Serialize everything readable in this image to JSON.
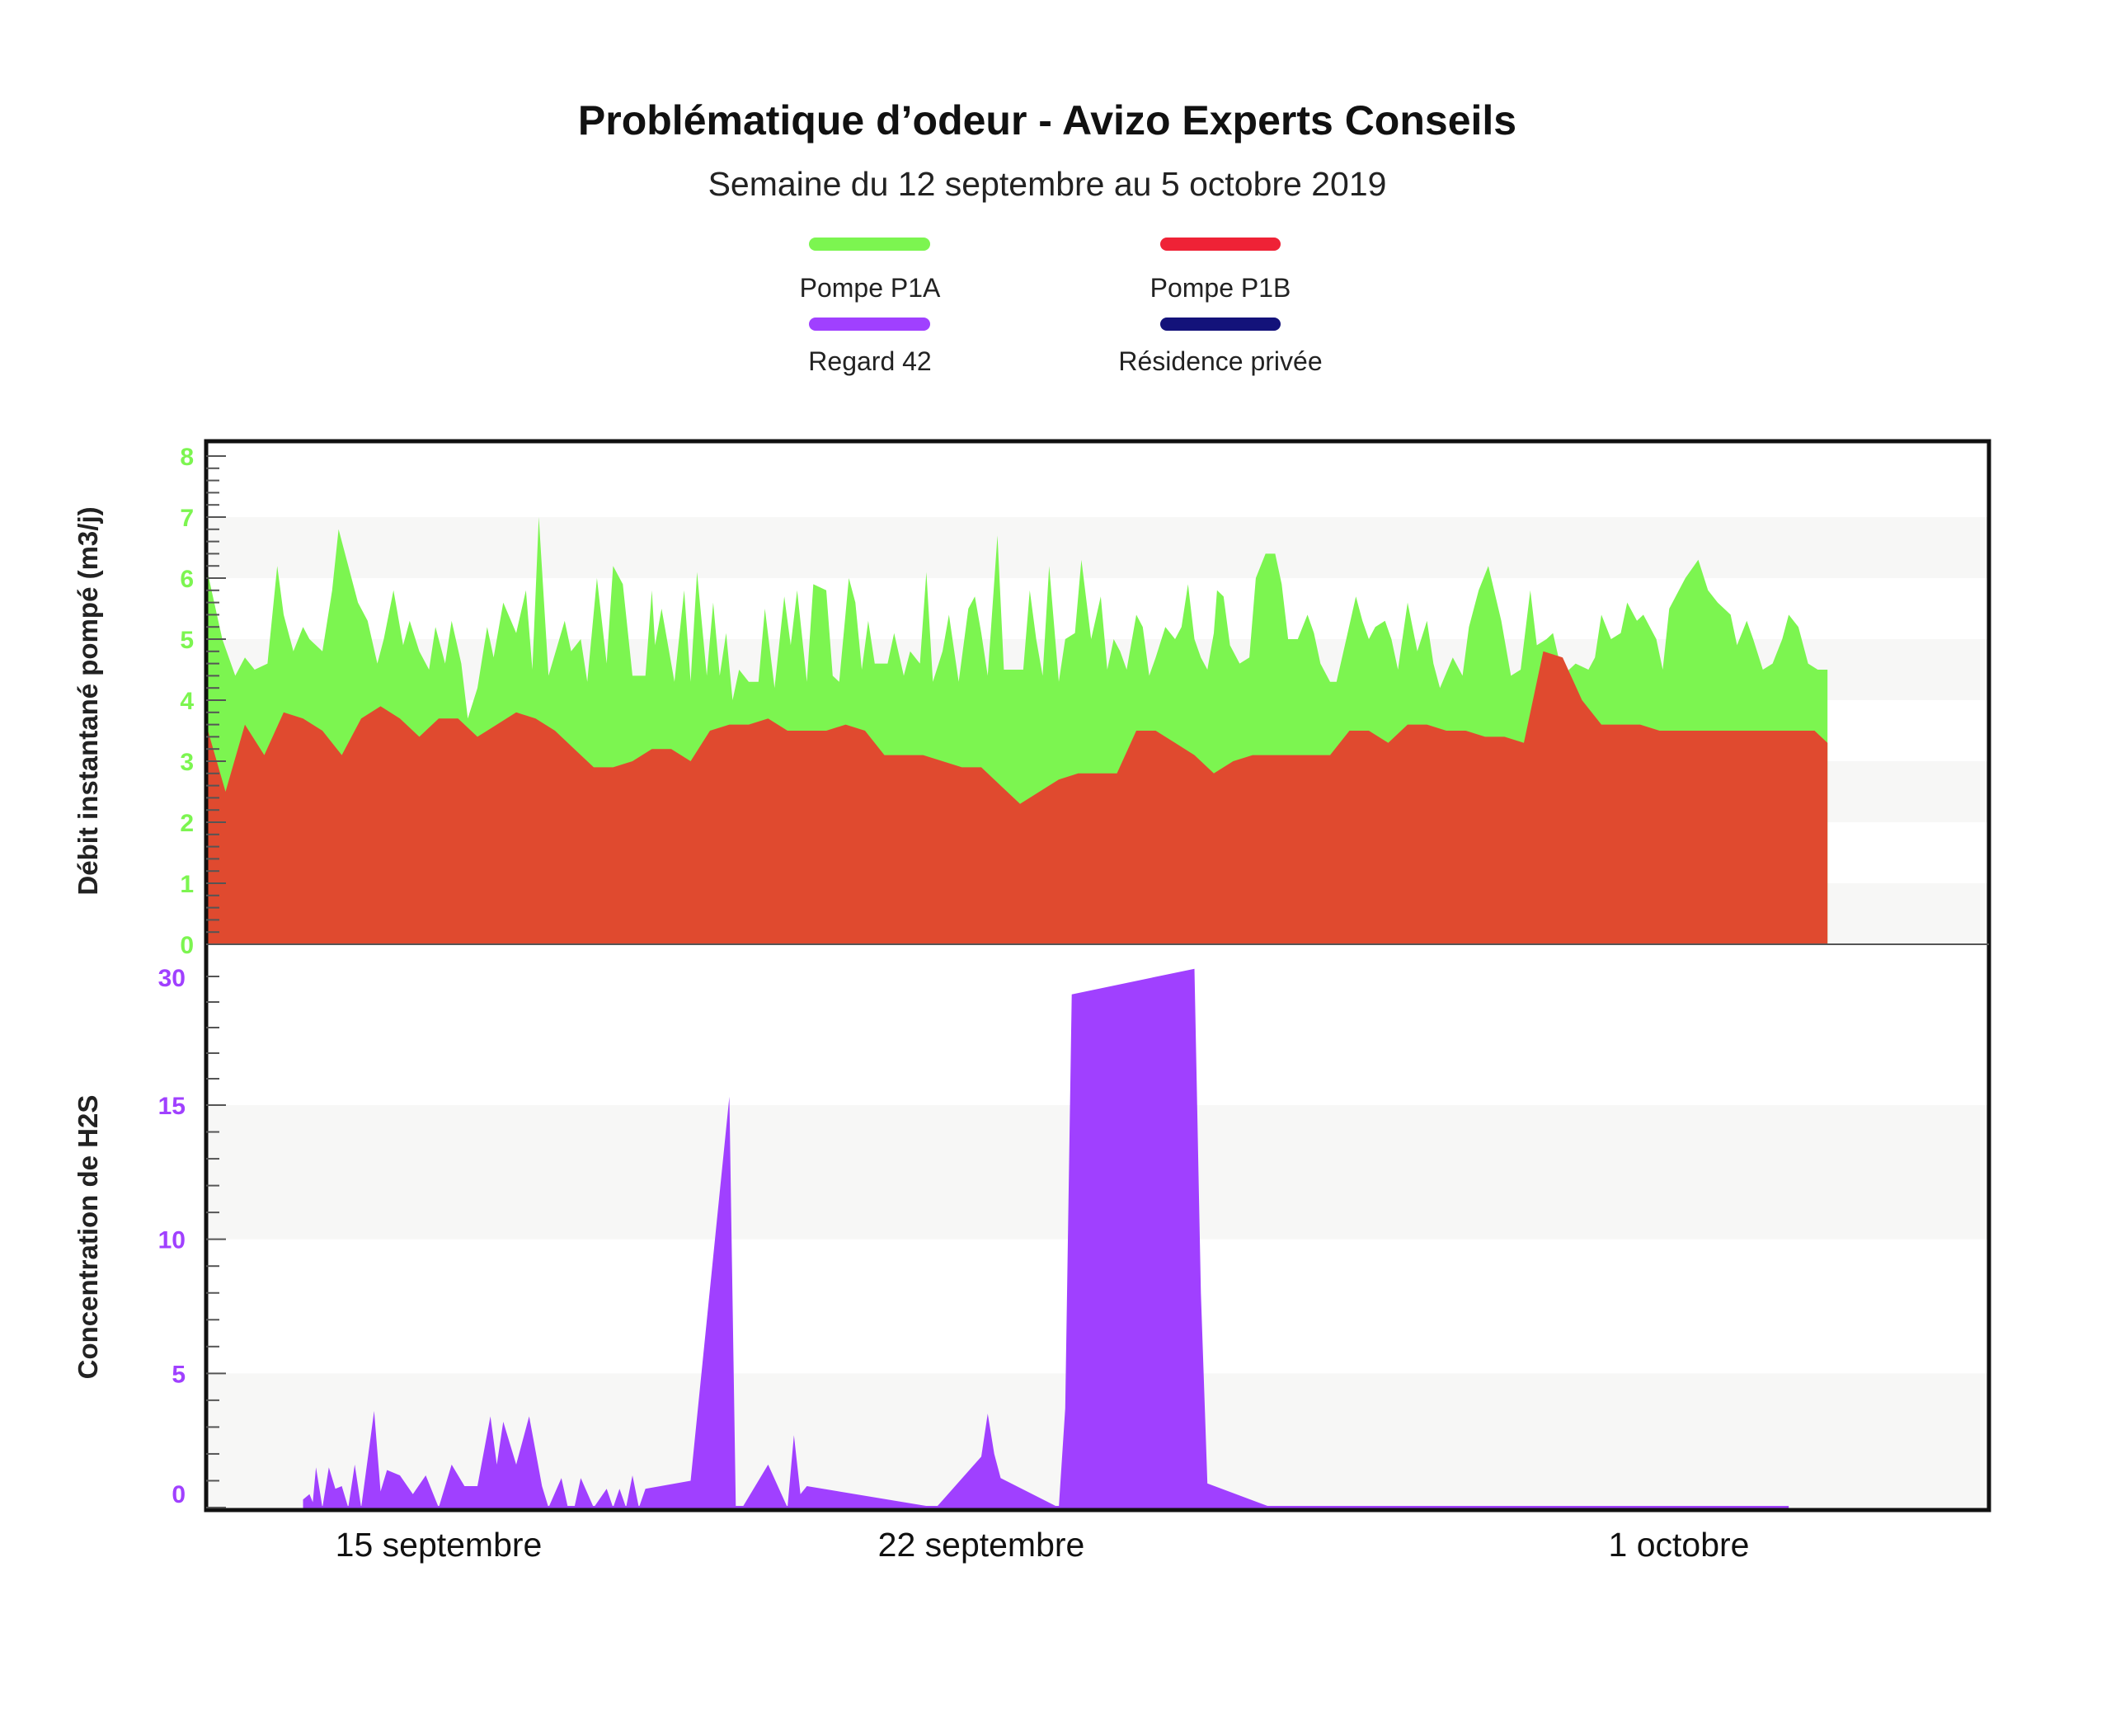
{
  "title": "Problématique d’odeur - Avizo Experts Conseils",
  "subtitle": "Semaine du 12 septembre au 5 octobre 2019",
  "colors": {
    "p1a": "#7cf550",
    "p1b": "#e04a2f",
    "p1b_legend": "#ef2236",
    "regard42": "#a040ff",
    "residence": "#13127a"
  },
  "chart_data": [
    {
      "type": "area",
      "ylabel": "Débit instantané pompé (m3/j)",
      "ylim": [
        0,
        8
      ],
      "yticks": [
        "0",
        "1",
        "2",
        "3",
        "4",
        "5",
        "6",
        "7",
        "8"
      ],
      "xlim": [
        "2019-09-12",
        "2019-10-05"
      ],
      "xticks": [
        {
          "date": "2019-09-15",
          "label": "15 septembre"
        },
        {
          "date": "2019-09-22",
          "label": "22 septembre"
        },
        {
          "date": "2019-10-01",
          "label": "1 octobre"
        }
      ],
      "grid": "alternating bands",
      "legend": "top-center",
      "series": [
        {
          "name": "Pompe P1A",
          "x": [
            "2019-09-12 00:00",
            "2019-09-12 05:00",
            "2019-09-12 09:00",
            "2019-09-12 12:00",
            "2019-09-12 15:00",
            "2019-09-12 19:00",
            "2019-09-12 22:00",
            "2019-09-13 00:00",
            "2019-09-13 03:00",
            "2019-09-13 06:00",
            "2019-09-13 08:00",
            "2019-09-13 12:00",
            "2019-09-13 15:00",
            "2019-09-13 17:00",
            "2019-09-13 23:00",
            "2019-09-14 02:00",
            "2019-09-14 05:00",
            "2019-09-14 07:00",
            "2019-09-14 10:00",
            "2019-09-14 13:00",
            "2019-09-14 15:00",
            "2019-09-14 18:00",
            "2019-09-14 21:00",
            "2019-09-14 23:00",
            "2019-09-15 02:00",
            "2019-09-15 04:00",
            "2019-09-15 07:00",
            "2019-09-15 09:00",
            "2019-09-15 12:00",
            "2019-09-15 15:00",
            "2019-09-15 17:00",
            "2019-09-15 20:00",
            "2019-09-16 00:00",
            "2019-09-16 03:00",
            "2019-09-16 05:00",
            "2019-09-16 07:00",
            "2019-09-16 10:00",
            "2019-09-16 15:00",
            "2019-09-16 17:00",
            "2019-09-16 20:00",
            "2019-09-16 22:00",
            "2019-09-17 01:00",
            "2019-09-17 04:00",
            "2019-09-17 06:00",
            "2019-09-17 09:00",
            "2019-09-17 12:00",
            "2019-09-17 16:00",
            "2019-09-17 18:00",
            "2019-09-17 19:00",
            "2019-09-17 21:00",
            "2019-09-18 01:00",
            "2019-09-18 04:00",
            "2019-09-18 06:00",
            "2019-09-18 08:00",
            "2019-09-18 11:00",
            "2019-09-18 13:00",
            "2019-09-18 15:00",
            "2019-09-18 17:00",
            "2019-09-18 19:00",
            "2019-09-18 21:00",
            "2019-09-19 00:00",
            "2019-09-19 03:00",
            "2019-09-19 05:00",
            "2019-09-19 08:00",
            "2019-09-19 11:00",
            "2019-09-19 13:00",
            "2019-09-19 15:00",
            "2019-09-19 18:00",
            "2019-09-19 20:00",
            "2019-09-20 00:00",
            "2019-09-20 02:00",
            "2019-09-20 04:00",
            "2019-09-20 07:00",
            "2019-09-20 09:00",
            "2019-09-20 11:00",
            "2019-09-20 13:00",
            "2019-09-20 15:00",
            "2019-09-20 17:00",
            "2019-09-20 19:00",
            "2019-09-20 21:00",
            "2019-09-21 00:00",
            "2019-09-21 02:00",
            "2019-09-21 05:00",
            "2019-09-21 07:00",
            "2019-09-21 09:00",
            "2019-09-21 12:00",
            "2019-09-21 14:00",
            "2019-09-21 17:00",
            "2019-09-21 20:00",
            "2019-09-21 22:00",
            "2019-09-22 00:00",
            "2019-09-22 02:00",
            "2019-09-22 05:00",
            "2019-09-22 07:00",
            "2019-09-22 09:00",
            "2019-09-22 11:00",
            "2019-09-22 13:00",
            "2019-09-22 15:00",
            "2019-09-22 17:00",
            "2019-09-22 19:00",
            "2019-09-22 21:00",
            "2019-09-23 00:00",
            "2019-09-23 02:00",
            "2019-09-23 05:00",
            "2019-09-23 07:00",
            "2019-09-23 10:00",
            "2019-09-23 13:00",
            "2019-09-23 15:00",
            "2019-09-23 17:00",
            "2019-09-23 19:00",
            "2019-09-23 21:00",
            "2019-09-24 00:00",
            "2019-09-24 02:00",
            "2019-09-24 04:00",
            "2019-09-24 06:00",
            "2019-09-24 09:00",
            "2019-09-24 12:00",
            "2019-09-24 14:00",
            "2019-09-24 16:00",
            "2019-09-24 18:00",
            "2019-09-24 20:00",
            "2019-09-24 22:00",
            "2019-09-25 00:00",
            "2019-09-25 01:00",
            "2019-09-25 03:00",
            "2019-09-25 05:00",
            "2019-09-25 08:00",
            "2019-09-25 11:00",
            "2019-09-25 13:00",
            "2019-09-25 16:00",
            "2019-09-25 19:00",
            "2019-09-25 21:00",
            "2019-09-25 23:00",
            "2019-09-26 02:00",
            "2019-09-26 05:00",
            "2019-09-26 07:00",
            "2019-09-26 09:00",
            "2019-09-26 12:00",
            "2019-09-26 14:00",
            "2019-09-26 17:00",
            "2019-09-26 20:00",
            "2019-09-26 22:00",
            "2019-09-27 00:00",
            "2019-09-27 02:00",
            "2019-09-27 05:00",
            "2019-09-27 07:00",
            "2019-09-27 09:00",
            "2019-09-27 12:00",
            "2019-09-27 15:00",
            "2019-09-27 18:00",
            "2019-09-27 20:00",
            "2019-09-27 22:00",
            "2019-09-28 02:00",
            "2019-09-28 05:00",
            "2019-09-28 07:00",
            "2019-09-28 10:00",
            "2019-09-28 13:00",
            "2019-09-28 17:00",
            "2019-09-28 20:00",
            "2019-09-28 23:00",
            "2019-09-29 02:00",
            "2019-09-29 04:00",
            "2019-09-29 07:00",
            "2019-09-29 09:00",
            "2019-09-29 12:00",
            "2019-09-29 16:00",
            "2019-09-29 20:00",
            "2019-09-29 22:00",
            "2019-09-30 00:00",
            "2019-09-30 03:00",
            "2019-09-30 06:00",
            "2019-09-30 08:00",
            "2019-09-30 11:00",
            "2019-09-30 13:00",
            "2019-09-30 17:00",
            "2019-09-30 19:00",
            "2019-09-30 21:00",
            "2019-10-01 02:00",
            "2019-10-01 06:00",
            "2019-10-01 09:00",
            "2019-10-01 12:00",
            "2019-10-01 16:00",
            "2019-10-01 18:00",
            "2019-10-01 21:00",
            "2019-10-01 23:00",
            "2019-10-02 02:00",
            "2019-10-02 05:00",
            "2019-10-02 08:00",
            "2019-10-02 10:00",
            "2019-10-02 13:00",
            "2019-10-02 16:00",
            "2019-10-02 19:00",
            "2019-10-02 22:00"
          ],
          "values": [
            6.2,
            5.0,
            4.4,
            4.7,
            4.5,
            4.6,
            6.2,
            5.4,
            4.8,
            5.2,
            5.0,
            4.8,
            5.8,
            6.8,
            5.6,
            5.3,
            4.6,
            5.0,
            5.8,
            4.9,
            5.3,
            4.8,
            4.5,
            5.2,
            4.6,
            5.3,
            4.6,
            3.7,
            4.2,
            5.2,
            4.7,
            5.6,
            5.1,
            5.8,
            4.5,
            7.0,
            4.4,
            5.3,
            4.8,
            5.0,
            4.3,
            6.0,
            4.6,
            6.2,
            5.9,
            4.4,
            4.4,
            5.8,
            4.9,
            5.5,
            4.3,
            5.8,
            4.3,
            6.1,
            4.4,
            5.6,
            4.4,
            5.1,
            4.0,
            4.5,
            4.3,
            4.3,
            5.5,
            4.2,
            5.7,
            4.9,
            5.8,
            4.3,
            5.9,
            5.8,
            4.4,
            4.3,
            6.0,
            5.6,
            4.5,
            5.3,
            4.6,
            4.6,
            4.6,
            5.1,
            4.4,
            4.8,
            4.6,
            6.1,
            4.3,
            4.8,
            5.4,
            4.3,
            5.5,
            5.7,
            5.1,
            4.4,
            6.7,
            4.5,
            4.5,
            4.5,
            4.5,
            5.8,
            5.0,
            4.4,
            6.2,
            4.3,
            5.0,
            5.1,
            6.3,
            5.0,
            5.7,
            4.5,
            5.0,
            4.8,
            4.5,
            5.4,
            5.2,
            4.4,
            4.7,
            5.2,
            5.0,
            5.2,
            5.9,
            5.0,
            4.7,
            4.5,
            5.1,
            5.8,
            5.7,
            4.9,
            4.6,
            4.7,
            6.0,
            6.4,
            6.4,
            5.9,
            5.0,
            5.0,
            5.4,
            5.1,
            4.6,
            4.3,
            4.3,
            5.0,
            5.7,
            5.3,
            5.0,
            5.2,
            5.3,
            5.0,
            4.5,
            5.6,
            4.8,
            5.3,
            4.6,
            4.2,
            4.7,
            4.4,
            5.2,
            5.8,
            6.2,
            5.3,
            4.4,
            4.5,
            5.8,
            4.9,
            5.0,
            5.1,
            4.4,
            4.6,
            4.5,
            4.7,
            5.4,
            5.0,
            5.1,
            5.6,
            5.3,
            5.4,
            5.0,
            4.5,
            5.5,
            6.0,
            6.3,
            5.8,
            5.6,
            5.4,
            4.9,
            5.3,
            5.0,
            4.5,
            4.6,
            5.0,
            5.4,
            5.2,
            4.6,
            4.5,
            4.5
          ]
        },
        {
          "name": "Pompe P1B",
          "x": [
            "2019-09-12 00:00",
            "2019-09-12 06:00",
            "2019-09-12 12:00",
            "2019-09-12 18:00",
            "2019-09-13 00:00",
            "2019-09-13 06:00",
            "2019-09-13 12:00",
            "2019-09-13 18:00",
            "2019-09-14 00:00",
            "2019-09-14 06:00",
            "2019-09-14 12:00",
            "2019-09-14 18:00",
            "2019-09-15 00:00",
            "2019-09-15 06:00",
            "2019-09-15 12:00",
            "2019-09-15 18:00",
            "2019-09-16 00:00",
            "2019-09-16 06:00",
            "2019-09-16 12:00",
            "2019-09-16 18:00",
            "2019-09-17 00:00",
            "2019-09-17 06:00",
            "2019-09-17 12:00",
            "2019-09-17 18:00",
            "2019-09-18 00:00",
            "2019-09-18 06:00",
            "2019-09-18 12:00",
            "2019-09-18 18:00",
            "2019-09-19 00:00",
            "2019-09-19 06:00",
            "2019-09-19 12:00",
            "2019-09-19 18:00",
            "2019-09-20 00:00",
            "2019-09-20 06:00",
            "2019-09-20 12:00",
            "2019-09-20 18:00",
            "2019-09-21 00:00",
            "2019-09-21 06:00",
            "2019-09-21 12:00",
            "2019-09-21 18:00",
            "2019-09-22 00:00",
            "2019-09-22 06:00",
            "2019-09-22 12:00",
            "2019-09-22 18:00",
            "2019-09-23 00:00",
            "2019-09-23 06:00",
            "2019-09-23 12:00",
            "2019-09-23 18:00",
            "2019-09-24 00:00",
            "2019-09-24 06:00",
            "2019-09-24 12:00",
            "2019-09-24 18:00",
            "2019-09-25 00:00",
            "2019-09-25 06:00",
            "2019-09-25 12:00",
            "2019-09-25 18:00",
            "2019-09-26 00:00",
            "2019-09-26 06:00",
            "2019-09-26 12:00",
            "2019-09-26 18:00",
            "2019-09-27 00:00",
            "2019-09-27 06:00",
            "2019-09-27 12:00",
            "2019-09-27 18:00",
            "2019-09-28 00:00",
            "2019-09-28 06:00",
            "2019-09-28 12:00",
            "2019-09-28 18:00",
            "2019-09-29 00:00",
            "2019-09-29 06:00",
            "2019-09-29 12:00",
            "2019-09-29 18:00",
            "2019-09-30 00:00",
            "2019-09-30 06:00",
            "2019-09-30 12:00",
            "2019-09-30 18:00",
            "2019-10-01 00:00",
            "2019-10-01 06:00",
            "2019-10-01 12:00",
            "2019-10-01 18:00",
            "2019-10-02 00:00",
            "2019-10-02 06:00",
            "2019-10-02 12:00",
            "2019-10-02 18:00",
            "2019-10-02 22:00"
          ],
          "values": [
            3.6,
            2.5,
            3.6,
            3.1,
            3.8,
            3.7,
            3.5,
            3.1,
            3.7,
            3.9,
            3.7,
            3.4,
            3.7,
            3.7,
            3.4,
            3.6,
            3.8,
            3.7,
            3.5,
            3.2,
            2.9,
            2.9,
            3.0,
            3.2,
            3.2,
            3.0,
            3.5,
            3.6,
            3.6,
            3.7,
            3.5,
            3.5,
            3.5,
            3.6,
            3.5,
            3.1,
            3.1,
            3.1,
            3.0,
            2.9,
            2.9,
            2.6,
            2.3,
            2.5,
            2.7,
            2.8,
            2.8,
            2.8,
            3.5,
            3.5,
            3.3,
            3.1,
            2.8,
            3.0,
            3.1,
            3.1,
            3.1,
            3.1,
            3.1,
            3.5,
            3.5,
            3.3,
            3.6,
            3.6,
            3.5,
            3.5,
            3.4,
            3.4,
            3.3,
            4.8,
            4.7,
            4.0,
            3.6,
            3.6,
            3.6,
            3.5,
            3.5,
            3.5,
            3.5,
            3.5,
            3.5,
            3.5,
            3.5,
            3.5,
            3.3
          ]
        }
      ]
    },
    {
      "type": "area",
      "ylabel": "Concentration de H2S",
      "ylim": [
        0,
        30
      ],
      "yticks": [
        "0",
        "5",
        "10",
        "15",
        "30"
      ],
      "grid": "alternating bands",
      "series": [
        {
          "name": "Regard 42",
          "x": [
            "2019-09-13 06:00",
            "2019-09-13 08:00",
            "2019-09-13 09:00",
            "2019-09-13 10:00",
            "2019-09-13 12:00",
            "2019-09-13 14:00",
            "2019-09-13 16:00",
            "2019-09-13 18:00",
            "2019-09-13 20:00",
            "2019-09-13 22:00",
            "2019-09-14 00:00",
            "2019-09-14 04:00",
            "2019-09-14 06:00",
            "2019-09-14 08:00",
            "2019-09-14 12:00",
            "2019-09-14 16:00",
            "2019-09-14 20:00",
            "2019-09-15 00:00",
            "2019-09-15 04:00",
            "2019-09-15 08:00",
            "2019-09-15 12:00",
            "2019-09-15 16:00",
            "2019-09-15 18:00",
            "2019-09-15 20:00",
            "2019-09-16 00:00",
            "2019-09-16 04:00",
            "2019-09-16 08:00",
            "2019-09-16 10:00",
            "2019-09-16 14:00",
            "2019-09-16 16:00",
            "2019-09-16 18:00",
            "2019-09-16 20:00",
            "2019-09-17 00:00",
            "2019-09-17 04:00",
            "2019-09-17 06:00",
            "2019-09-17 08:00",
            "2019-09-17 10:00",
            "2019-09-17 12:00",
            "2019-09-17 14:00",
            "2019-09-17 16:00",
            "2019-09-18 06:00",
            "2019-09-18 18:00",
            "2019-09-18 20:00",
            "2019-09-18 22:00",
            "2019-09-19 06:00",
            "2019-09-19 12:00",
            "2019-09-19 14:00",
            "2019-09-19 16:00",
            "2019-09-19 18:00",
            "2019-09-21 10:00",
            "2019-09-22 00:00",
            "2019-09-22 02:00",
            "2019-09-22 04:00",
            "2019-09-22 06:00",
            "2019-09-23 00:00",
            "2019-09-23 02:00",
            "2019-09-23 04:00",
            "2019-09-24 18:00",
            "2019-09-24 20:00",
            "2019-09-24 22:00",
            "2019-09-25 18:00",
            "2019-09-25 20:00",
            "2019-09-25 22:00",
            "2019-09-26 04:00",
            "2019-09-26 06:00",
            "2019-09-26 12:00",
            "2019-09-30 18:00",
            "2019-09-30 20:00",
            "2019-10-01 00:00",
            "2019-10-01 04:00",
            "2019-10-01 06:00",
            "2019-10-01 08:00"
          ],
          "values": [
            0.3,
            0.5,
            0.2,
            1.5,
            0.0,
            1.5,
            0.7,
            0.8,
            0.0,
            1.6,
            0.0,
            3.6,
            0.6,
            1.4,
            1.2,
            0.5,
            1.2,
            0.0,
            1.6,
            0.8,
            0.8,
            3.4,
            1.6,
            3.2,
            1.6,
            3.4,
            0.8,
            0.0,
            1.1,
            0.0,
            0.0,
            1.1,
            0.0,
            0.7,
            0.0,
            0.7,
            0.0,
            1.2,
            0.0,
            0.7,
            1.0,
            16.0,
            0.0,
            0.0,
            1.6,
            0.0,
            2.7,
            0.5,
            0.8,
            0.0,
            1.9,
            3.5,
            2.0,
            1.1,
            0.0,
            3.7,
            28.0,
            31.0,
            8.0,
            0.9,
            0.0,
            0.0,
            0.0,
            0.0,
            0.0,
            0.0,
            0.0,
            0.0,
            0.0,
            0.0,
            0.0,
            0.0
          ]
        }
      ]
    }
  ],
  "legend": [
    {
      "label": "Pompe P1A",
      "color": "#7cf550"
    },
    {
      "label": "Pompe P1B",
      "color": "#ef2236"
    },
    {
      "label": "Regard 42",
      "color": "#a040ff"
    },
    {
      "label": "Résidence privée",
      "color": "#13127a"
    }
  ]
}
